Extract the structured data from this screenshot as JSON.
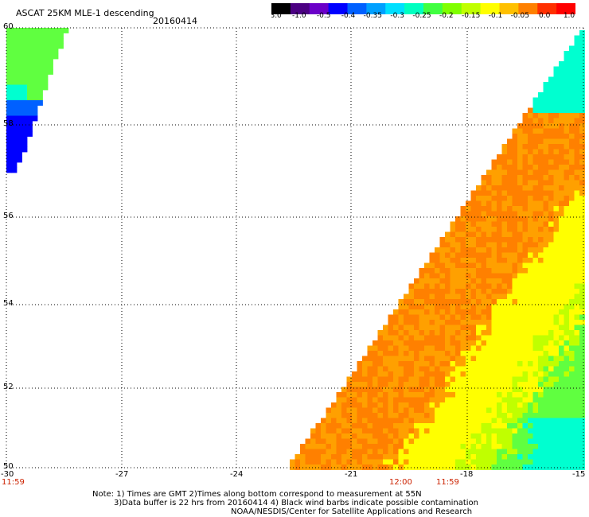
{
  "header": {
    "title": "ASCAT 25KM MLE-1 descending",
    "date": "20160414"
  },
  "colorbar": {
    "labels": [
      "-3.0",
      "-1.0",
      "-0.5",
      "-0.4",
      "-0.35",
      "-0.3",
      "-0.25",
      "-0.2",
      "-0.15",
      "-0.1",
      "-0.05",
      "0.0",
      "1.0"
    ],
    "colors": [
      "#000000",
      "#4b0082",
      "#6a00c8",
      "#0000ff",
      "#0060ff",
      "#00a0ff",
      "#00e0ff",
      "#00ffc0",
      "#40ff40",
      "#80ff00",
      "#c0ff00",
      "#ffff00",
      "#ffc000",
      "#ff8000",
      "#ff3000",
      "#ff0000"
    ]
  },
  "axes": {
    "y_labels": [
      "60",
      "58",
      "56",
      "54",
      "52",
      "50"
    ],
    "x_labels": [
      "-30",
      "-27",
      "-24",
      "-21",
      "-18",
      "-15"
    ]
  },
  "times": {
    "left": "11:59",
    "mid1": "12:00",
    "mid2": "11:59"
  },
  "notes": {
    "line1": "Note: 1) Times are GMT 2)Times along bottom correspond to measurement at 55N",
    "line2": "3)Data buffer is 22 hrs from 20160414 4) Black wind barbs indicate possible contamination",
    "line3": "NOAA/NESDIS/Center for Satellite Applications and Research"
  },
  "map_colors": {
    "orange": "#ff8000",
    "orange_light": "#ffa000",
    "yellow": "#ffff00",
    "yellow_green": "#c0ff00",
    "green": "#60ff40",
    "cyan": "#00ffd0",
    "blue": "#0000ff"
  }
}
